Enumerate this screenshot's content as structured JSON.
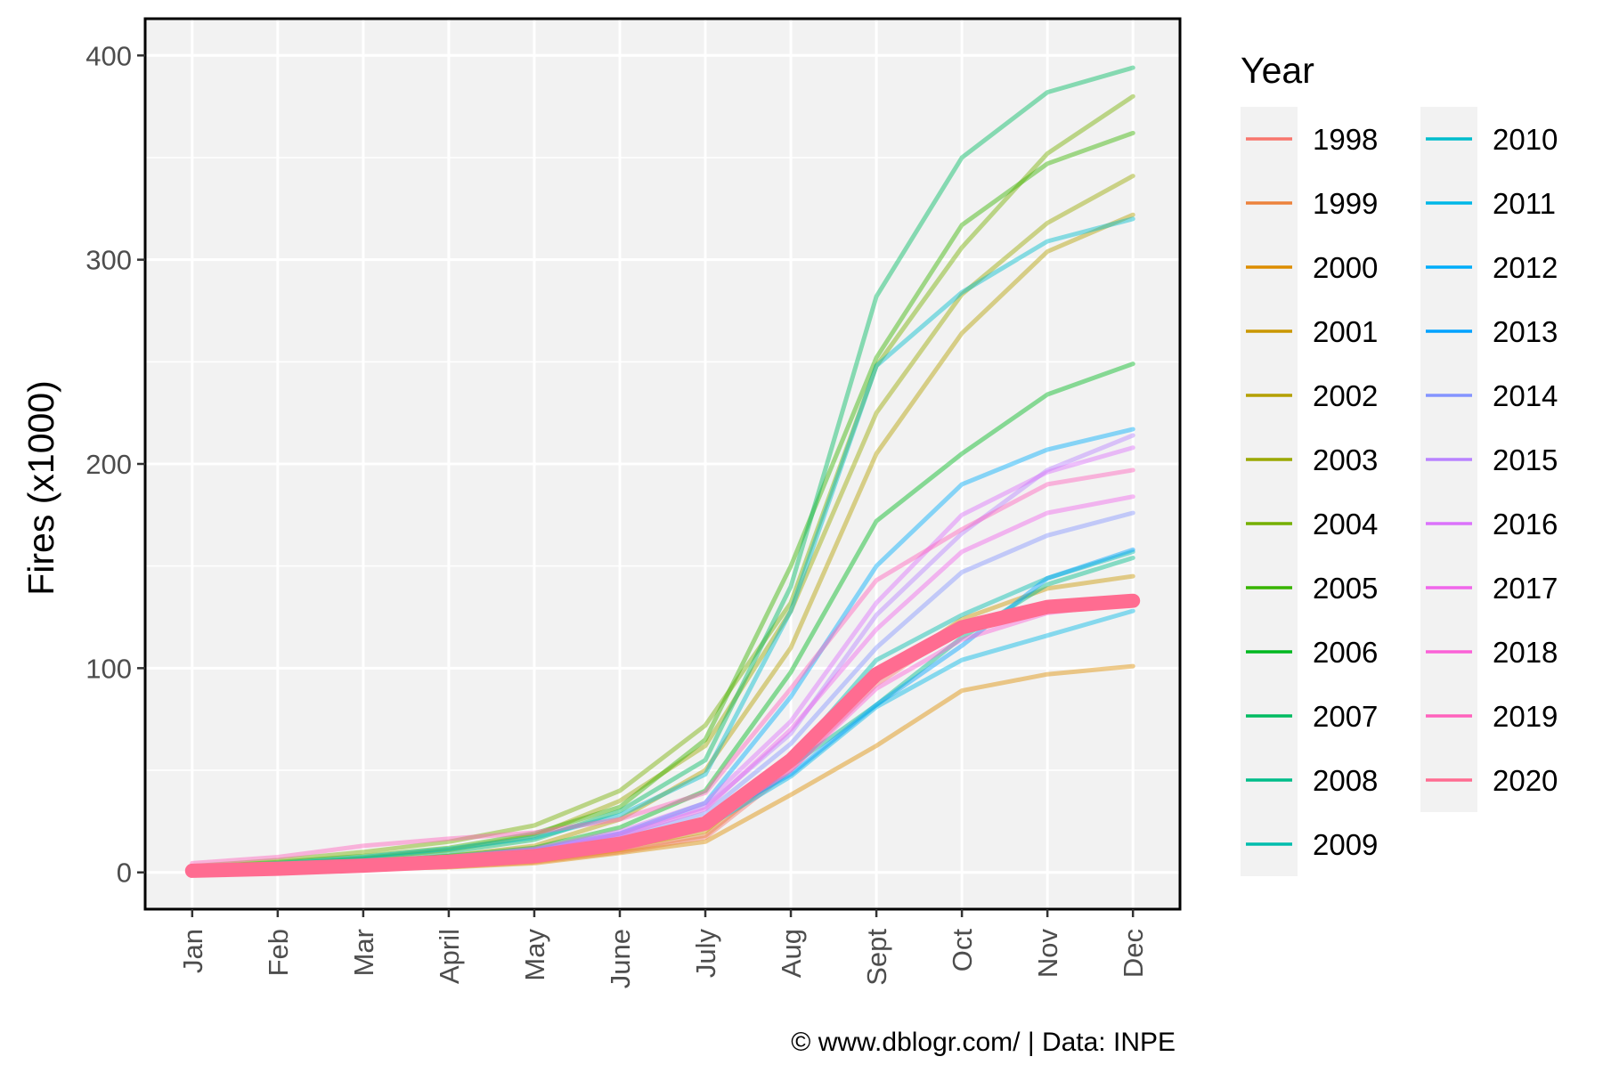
{
  "chart_data": {
    "type": "line",
    "title": "",
    "xlabel": "",
    "ylabel": "Fires (x1000)",
    "categories": [
      "Jan",
      "Feb",
      "Mar",
      "April",
      "May",
      "June",
      "July",
      "Aug",
      "Sept",
      "Oct",
      "Nov",
      "Dec"
    ],
    "ylim": [
      -18,
      418
    ],
    "yticks": [
      0,
      100,
      200,
      300,
      400
    ],
    "grid": true,
    "legend": {
      "title": "Year",
      "placement": "right"
    },
    "caption": "© www.dblogr.com/  |  Data: INPE",
    "highlight_series": "2020",
    "series": [
      {
        "name": "1998",
        "color": "#F8766D",
        "values": [
          0.4,
          1.0,
          2.0,
          2.8,
          5.0,
          10.0,
          17.0,
          50.0,
          92.0,
          120.0,
          130.0,
          134.0
        ]
      },
      {
        "name": "1999",
        "color": "#EC823C",
        "values": [
          0.5,
          1.2,
          2.1,
          3.0,
          5.5,
          11.0,
          18.0,
          52.0,
          94.0,
          121.0,
          129.0,
          135.0
        ]
      },
      {
        "name": "2000",
        "color": "#DD8D00",
        "values": [
          0.3,
          0.8,
          1.7,
          2.5,
          4.5,
          9.5,
          15.0,
          38.0,
          62.0,
          89.0,
          97.0,
          101.0
        ]
      },
      {
        "name": "2001",
        "color": "#CA9700",
        "values": [
          0.5,
          1.2,
          2.3,
          3.2,
          6.0,
          12.0,
          20.0,
          55.0,
          96.0,
          124.0,
          139.0,
          145.0
        ]
      },
      {
        "name": "2002",
        "color": "#B4A000",
        "values": [
          1.5,
          3.0,
          5.0,
          8.0,
          13.0,
          26.0,
          50.0,
          110.0,
          205.0,
          264.0,
          304.0,
          322.0
        ]
      },
      {
        "name": "2003",
        "color": "#9AA800",
        "values": [
          2.0,
          4.0,
          7.0,
          11.0,
          18.0,
          35.0,
          62.0,
          128.0,
          225.0,
          283.0,
          318.0,
          341.0
        ]
      },
      {
        "name": "2004",
        "color": "#75AF00",
        "values": [
          3.0,
          6.0,
          10.0,
          15.0,
          23.0,
          40.0,
          72.0,
          132.0,
          248.0,
          306.0,
          352.0,
          380.0
        ]
      },
      {
        "name": "2005",
        "color": "#37B400",
        "values": [
          2.5,
          5.0,
          8.0,
          12.0,
          19.0,
          32.0,
          65.0,
          150.0,
          252.0,
          317.0,
          347.0,
          362.0
        ]
      },
      {
        "name": "2006",
        "color": "#00B81F",
        "values": [
          1.5,
          3.0,
          5.0,
          8.0,
          12.0,
          22.0,
          40.0,
          98.0,
          172.0,
          205.0,
          234.0,
          249.0
        ]
      },
      {
        "name": "2007",
        "color": "#00BB61",
        "values": [
          2.0,
          4.0,
          6.5,
          10.0,
          16.0,
          30.0,
          55.0,
          140.0,
          282.0,
          350.0,
          382.0,
          394.0
        ]
      },
      {
        "name": "2008",
        "color": "#00BD89",
        "values": [
          0.8,
          1.8,
          3.2,
          5.0,
          8.0,
          15.0,
          25.0,
          52.0,
          82.0,
          115.0,
          141.0,
          154.0
        ]
      },
      {
        "name": "2009",
        "color": "#00BDAD",
        "values": [
          0.6,
          1.5,
          2.8,
          4.5,
          7.0,
          13.0,
          24.0,
          56.0,
          104.0,
          126.0,
          144.0,
          157.0
        ]
      },
      {
        "name": "2010",
        "color": "#00BCCC",
        "values": [
          2.2,
          4.5,
          7.5,
          11.5,
          17.0,
          28.0,
          48.0,
          128.0,
          248.0,
          284.0,
          309.0,
          320.0
        ]
      },
      {
        "name": "2011",
        "color": "#00B7E7",
        "values": [
          0.6,
          1.5,
          2.8,
          4.2,
          6.5,
          12.0,
          22.0,
          47.0,
          81.0,
          104.0,
          116.0,
          128.0
        ]
      },
      {
        "name": "2012",
        "color": "#00ADFA",
        "values": [
          1.2,
          2.8,
          4.8,
          7.5,
          11.0,
          19.0,
          34.0,
          86.0,
          150.0,
          190.0,
          207.0,
          217.0
        ]
      },
      {
        "name": "2013",
        "color": "#00A2FF",
        "values": [
          0.8,
          1.8,
          3.2,
          5.0,
          8.0,
          14.0,
          25.0,
          48.0,
          82.0,
          111.0,
          144.0,
          158.0
        ]
      },
      {
        "name": "2014",
        "color": "#8494FF",
        "values": [
          1.0,
          2.2,
          3.8,
          6.0,
          9.5,
          17.0,
          29.0,
          63.0,
          110.0,
          147.0,
          165.0,
          176.0
        ]
      },
      {
        "name": "2015",
        "color": "#B983FF",
        "values": [
          1.2,
          2.6,
          4.5,
          7.0,
          11.0,
          19.0,
          32.0,
          68.0,
          126.0,
          166.0,
          197.0,
          214.0
        ]
      },
      {
        "name": "2016",
        "color": "#DB72FB",
        "values": [
          1.3,
          2.8,
          4.8,
          7.5,
          11.5,
          20.0,
          34.0,
          74.0,
          132.0,
          175.0,
          196.0,
          208.0
        ]
      },
      {
        "name": "2017",
        "color": "#F066EA",
        "values": [
          1.1,
          2.4,
          4.2,
          6.5,
          10.0,
          18.0,
          31.0,
          70.0,
          119.0,
          157.0,
          176.0,
          184.0
        ]
      },
      {
        "name": "2018",
        "color": "#FB61D7",
        "values": [
          0.7,
          1.6,
          3.0,
          4.8,
          7.5,
          13.5,
          23.0,
          50.0,
          90.0,
          114.0,
          127.0,
          132.0
        ]
      },
      {
        "name": "2019",
        "color": "#FF62BC",
        "values": [
          4.5,
          7.5,
          13.0,
          16.5,
          19.5,
          26.0,
          39.0,
          90.0,
          143.0,
          168.0,
          190.0,
          197.0
        ]
      },
      {
        "name": "2020",
        "color": "#FF6C91",
        "values": [
          0.8,
          1.8,
          3.3,
          5.2,
          8.0,
          14.0,
          24.0,
          55.0,
          97.0,
          120.0,
          130.0,
          133.0
        ]
      }
    ]
  }
}
